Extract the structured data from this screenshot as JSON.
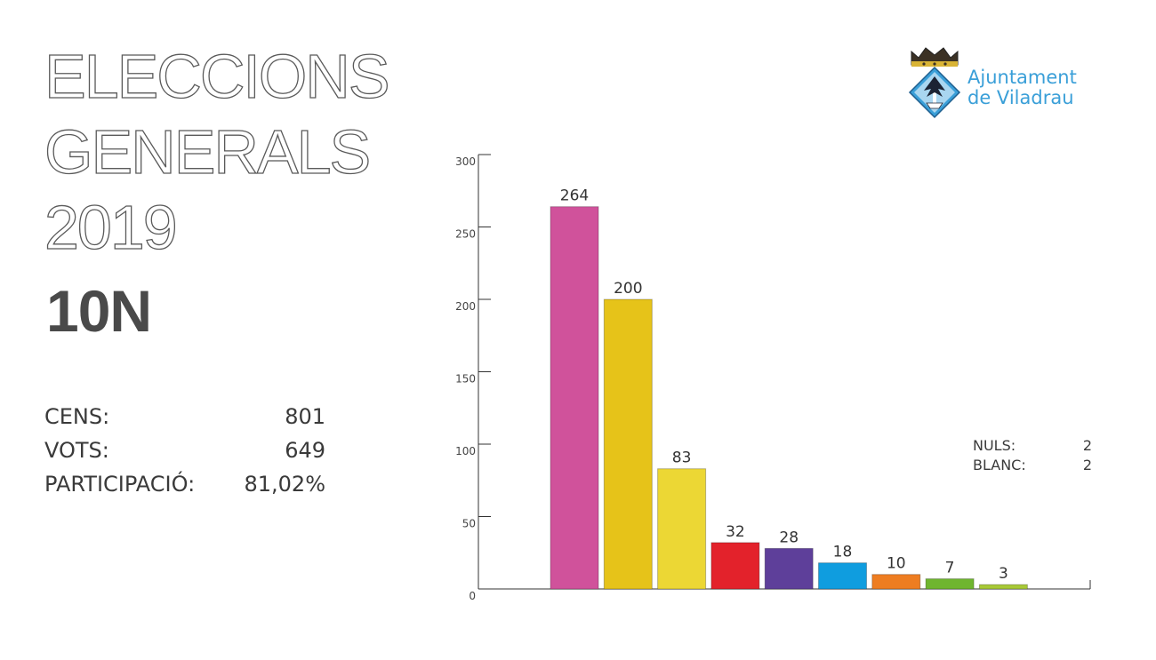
{
  "header": {
    "title_lines": [
      "ELECCIONS",
      "GENERALS",
      "2019"
    ],
    "subtitle": "10N"
  },
  "stats": [
    {
      "label": "CENS:",
      "value": "801"
    },
    {
      "label": "VOTS:",
      "value": "649"
    },
    {
      "label": "PARTICIPACIÓ:",
      "value": "81,02%"
    }
  ],
  "logo": {
    "line1": "Ajuntament",
    "line2": "de Viladrau",
    "icon": "coat-of-arms-icon",
    "text_color": "#3a9fd8"
  },
  "side_notes": [
    {
      "label": "NULS:",
      "value": "2"
    },
    {
      "label": "BLANC:",
      "value": "2"
    }
  ],
  "chart_data": {
    "type": "bar",
    "title": "",
    "xlabel": "",
    "ylabel": "",
    "ylim": [
      0,
      300
    ],
    "yticks": [
      0,
      50,
      100,
      150,
      200,
      250,
      300
    ],
    "grid": false,
    "values": [
      264,
      200,
      83,
      32,
      28,
      18,
      10,
      7,
      3
    ],
    "data_labels": [
      "264",
      "200",
      "83",
      "32",
      "28",
      "18",
      "10",
      "7",
      "3"
    ],
    "colors": [
      "#d0529b",
      "#e6c319",
      "#ecd734",
      "#e3222b",
      "#5e3f9a",
      "#0f9ddf",
      "#ee7d21",
      "#6fb52f",
      "#a8c936"
    ]
  }
}
